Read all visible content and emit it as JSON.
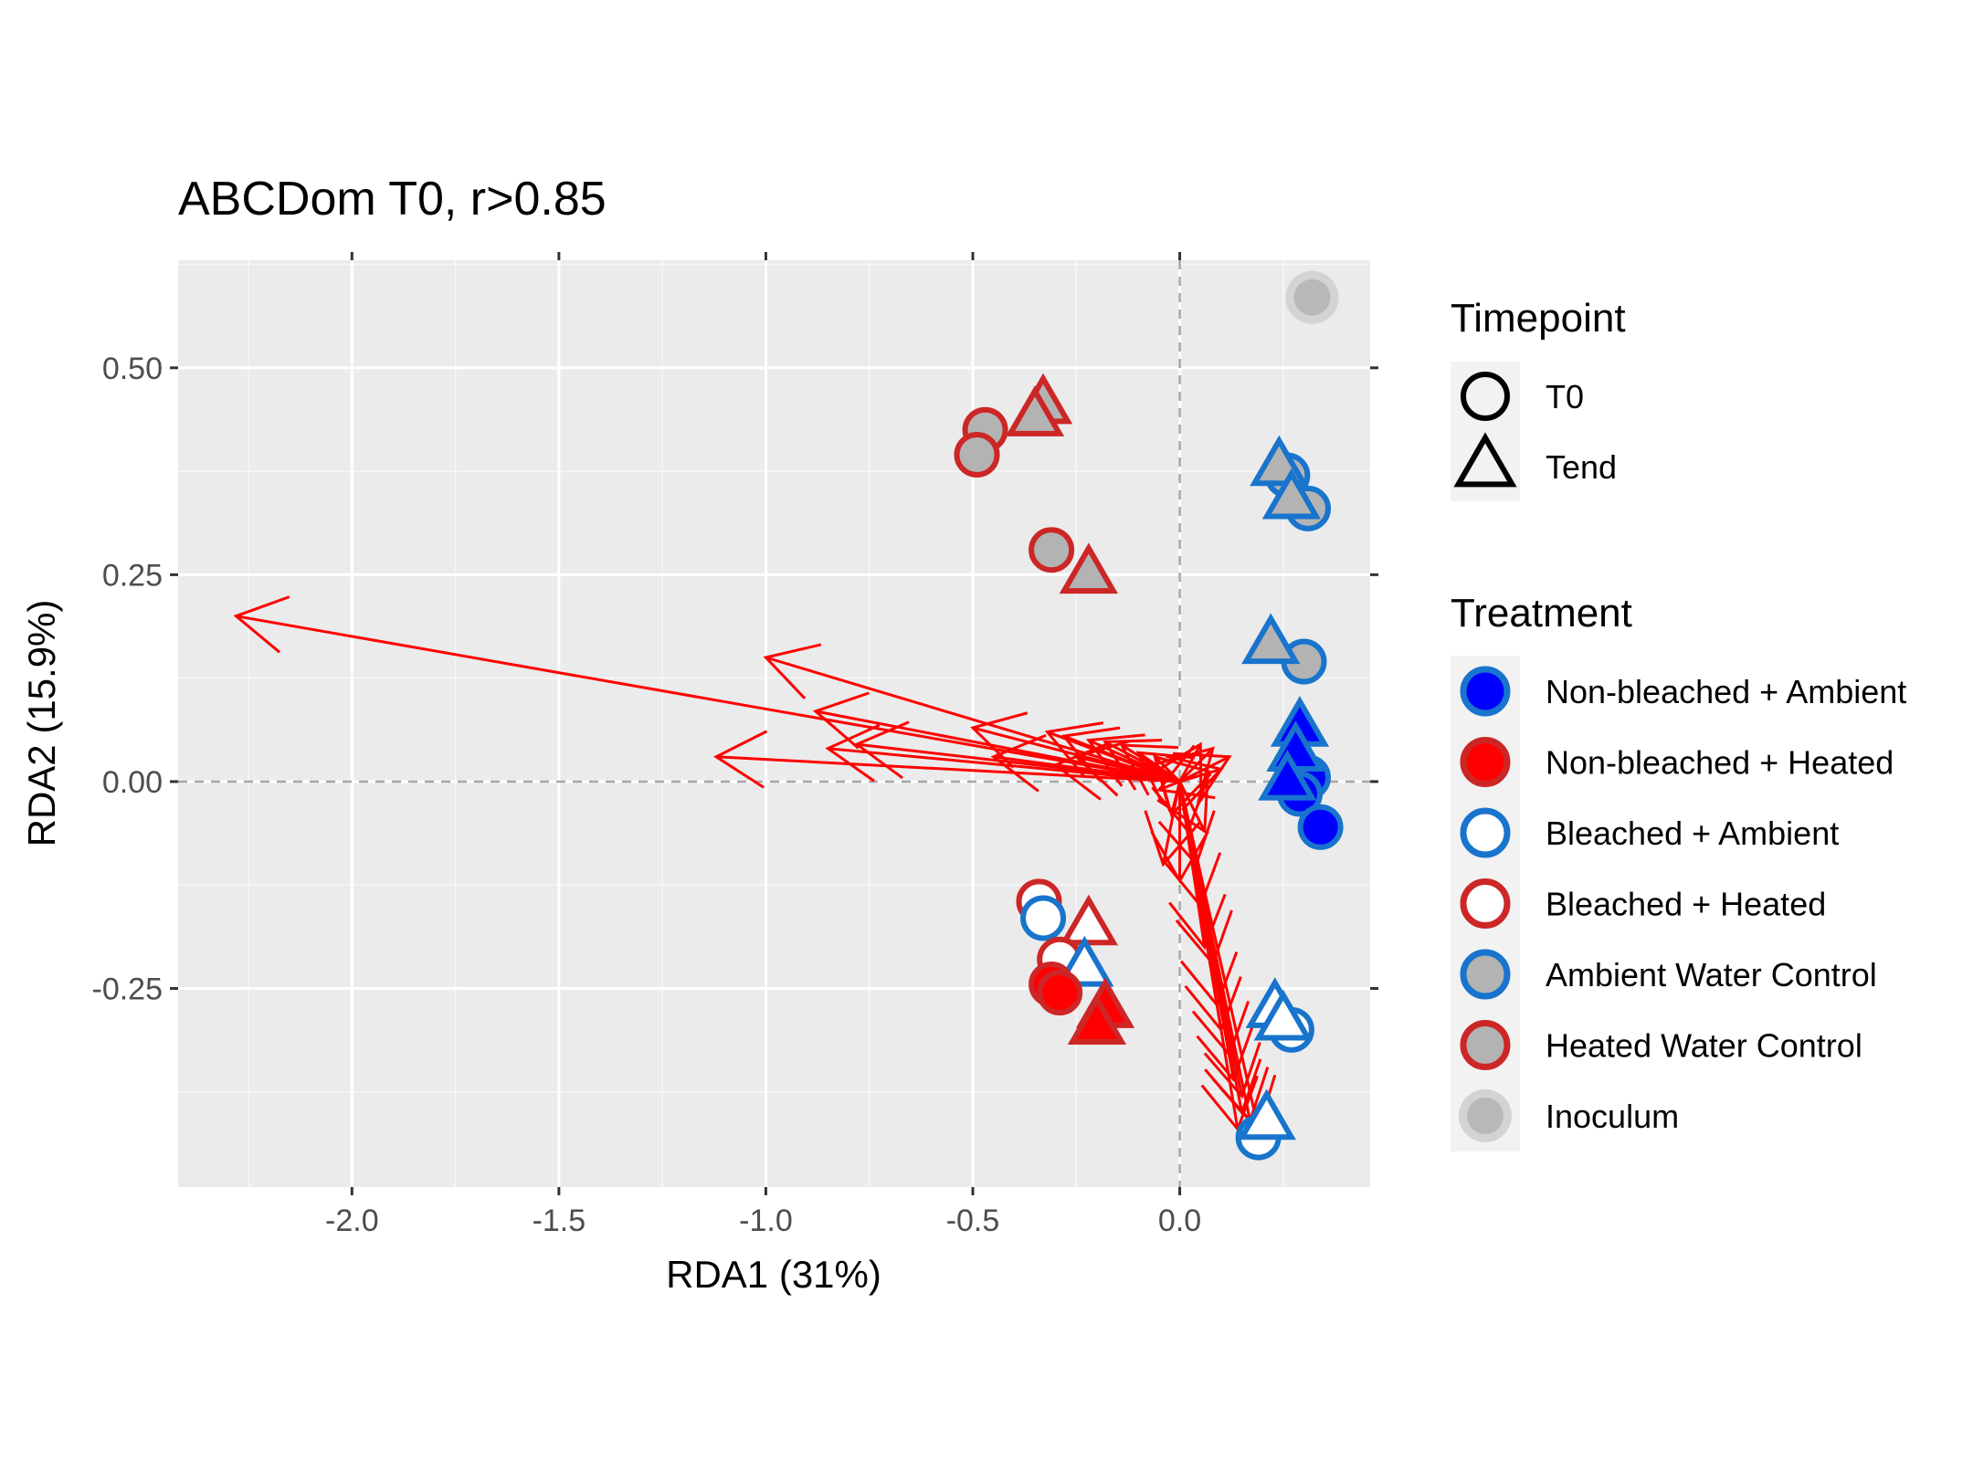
{
  "chart_data": {
    "type": "scatter",
    "title": "ABCDom T0, r>0.85",
    "xlabel": "RDA1 (31%)",
    "ylabel": "RDA2 (15.9%)",
    "xlim": [
      -2.42,
      0.46
    ],
    "ylim": [
      -0.49,
      0.63
    ],
    "x_ticks": [
      -2.0,
      -1.5,
      -1.0,
      -0.5,
      0.0
    ],
    "x_tick_labels": [
      "-2.0",
      "-1.5",
      "-1.0",
      "-0.5",
      "0.0"
    ],
    "y_ticks": [
      -0.25,
      0.0,
      0.25,
      0.5
    ],
    "y_tick_labels": [
      "-0.25",
      "0.00",
      "0.25",
      "0.50"
    ],
    "grid": true,
    "reference_lines": {
      "x": 0,
      "y": 0
    },
    "colors": {
      "panel": "#ebebeb",
      "grid_major": "#ffffff",
      "grid_minor": "#f7f7f7",
      "arrow": "#ff0000",
      "blue_fill": "#0000ff",
      "blue_outline": "#1874cd",
      "red_fill": "#ff0000",
      "red_outline": "#cd2626",
      "grey_fill": "#b3b3b3",
      "inoculum_fill": "#b8b8b8",
      "inoculum_outline": "#d3d3d3"
    },
    "legend": {
      "placement": "right",
      "timepoint": {
        "title": "Timepoint",
        "entries": [
          {
            "label": "T0",
            "shape": "circle"
          },
          {
            "label": "Tend",
            "shape": "triangle"
          }
        ]
      },
      "treatment": {
        "title": "Treatment",
        "entries": [
          {
            "label": "Non-bleached + Ambient",
            "fill": "#0000ff",
            "stroke": "#1874cd"
          },
          {
            "label": "Non-bleached + Heated",
            "fill": "#ff0000",
            "stroke": "#cd2626"
          },
          {
            "label": "Bleached + Ambient",
            "fill": "#ffffff",
            "stroke": "#1874cd"
          },
          {
            "label": "Bleached + Heated",
            "fill": "#ffffff",
            "stroke": "#cd2626"
          },
          {
            "label": "Ambient Water Control",
            "fill": "#b3b3b3",
            "stroke": "#1874cd"
          },
          {
            "label": "Heated Water Control",
            "fill": "#b3b3b3",
            "stroke": "#cd2626"
          },
          {
            "label": "Inoculum",
            "fill": "#b8b8b8",
            "stroke": "#d3d3d3"
          }
        ]
      }
    },
    "points": [
      {
        "x": 0.32,
        "y": 0.585,
        "shape": "circle",
        "treatment": 6
      },
      {
        "x": -0.33,
        "y": 0.455,
        "shape": "triangle",
        "treatment": 5
      },
      {
        "x": -0.35,
        "y": 0.44,
        "shape": "triangle",
        "treatment": 5
      },
      {
        "x": -0.47,
        "y": 0.425,
        "shape": "circle",
        "treatment": 5
      },
      {
        "x": -0.49,
        "y": 0.395,
        "shape": "circle",
        "treatment": 5
      },
      {
        "x": -0.31,
        "y": 0.28,
        "shape": "circle",
        "treatment": 5
      },
      {
        "x": -0.22,
        "y": 0.25,
        "shape": "triangle",
        "treatment": 5
      },
      {
        "x": 0.26,
        "y": 0.37,
        "shape": "circle",
        "treatment": 4
      },
      {
        "x": 0.31,
        "y": 0.33,
        "shape": "circle",
        "treatment": 4
      },
      {
        "x": 0.24,
        "y": 0.38,
        "shape": "triangle",
        "treatment": 4
      },
      {
        "x": 0.27,
        "y": 0.34,
        "shape": "triangle",
        "treatment": 4
      },
      {
        "x": 0.3,
        "y": 0.145,
        "shape": "circle",
        "treatment": 4
      },
      {
        "x": 0.22,
        "y": 0.165,
        "shape": "triangle",
        "treatment": 4
      },
      {
        "x": 0.31,
        "y": 0.005,
        "shape": "circle",
        "treatment": 0
      },
      {
        "x": 0.29,
        "y": -0.015,
        "shape": "circle",
        "treatment": 0
      },
      {
        "x": 0.34,
        "y": -0.055,
        "shape": "circle",
        "treatment": 0
      },
      {
        "x": 0.29,
        "y": 0.065,
        "shape": "triangle",
        "treatment": 0
      },
      {
        "x": 0.28,
        "y": 0.035,
        "shape": "triangle",
        "treatment": 0
      },
      {
        "x": 0.26,
        "y": 0.0,
        "shape": "triangle",
        "treatment": 0
      },
      {
        "x": -0.34,
        "y": -0.145,
        "shape": "circle",
        "treatment": 3
      },
      {
        "x": -0.33,
        "y": -0.165,
        "shape": "circle",
        "treatment": 2
      },
      {
        "x": -0.22,
        "y": -0.175,
        "shape": "triangle",
        "treatment": 3
      },
      {
        "x": -0.29,
        "y": -0.215,
        "shape": "circle",
        "treatment": 3
      },
      {
        "x": -0.23,
        "y": -0.225,
        "shape": "triangle",
        "treatment": 2
      },
      {
        "x": -0.31,
        "y": -0.245,
        "shape": "circle",
        "treatment": 1
      },
      {
        "x": -0.29,
        "y": -0.255,
        "shape": "circle",
        "treatment": 1
      },
      {
        "x": -0.18,
        "y": -0.275,
        "shape": "triangle",
        "treatment": 1
      },
      {
        "x": -0.2,
        "y": -0.295,
        "shape": "triangle",
        "treatment": 1
      },
      {
        "x": 0.23,
        "y": -0.275,
        "shape": "triangle",
        "treatment": 2
      },
      {
        "x": 0.27,
        "y": -0.3,
        "shape": "circle",
        "treatment": 2
      },
      {
        "x": 0.25,
        "y": -0.29,
        "shape": "triangle",
        "treatment": 2
      },
      {
        "x": 0.19,
        "y": -0.43,
        "shape": "circle",
        "treatment": 2
      },
      {
        "x": 0.21,
        "y": -0.41,
        "shape": "triangle",
        "treatment": 2
      }
    ],
    "arrows": [
      {
        "x": -2.28,
        "y": 0.2
      },
      {
        "x": -1.0,
        "y": 0.15
      },
      {
        "x": -1.12,
        "y": 0.03
      },
      {
        "x": -0.88,
        "y": 0.085
      },
      {
        "x": -0.78,
        "y": 0.045
      },
      {
        "x": -0.85,
        "y": 0.04
      },
      {
        "x": -0.5,
        "y": 0.065
      },
      {
        "x": -0.45,
        "y": 0.03
      },
      {
        "x": -0.32,
        "y": 0.06
      },
      {
        "x": -0.28,
        "y": 0.055
      },
      {
        "x": -0.22,
        "y": 0.05
      },
      {
        "x": -0.18,
        "y": 0.048
      },
      {
        "x": -0.14,
        "y": 0.044
      },
      {
        "x": -0.3,
        "y": 0.02
      },
      {
        "x": -0.25,
        "y": 0.03
      },
      {
        "x": -0.1,
        "y": 0.035
      },
      {
        "x": -0.06,
        "y": 0.03
      },
      {
        "x": 0.05,
        "y": 0.045
      },
      {
        "x": 0.08,
        "y": 0.04
      },
      {
        "x": 0.12,
        "y": 0.03
      },
      {
        "x": 0.1,
        "y": 0.015
      },
      {
        "x": -0.05,
        "y": -0.01
      },
      {
        "x": -0.02,
        "y": -0.04
      },
      {
        "x": 0.02,
        "y": -0.06
      },
      {
        "x": 0.06,
        "y": -0.06
      },
      {
        "x": -0.04,
        "y": -0.1
      },
      {
        "x": 0.0,
        "y": -0.12
      },
      {
        "x": 0.04,
        "y": -0.1
      },
      {
        "x": 0.05,
        "y": -0.15
      },
      {
        "x": 0.06,
        "y": -0.2
      },
      {
        "x": 0.08,
        "y": -0.22
      },
      {
        "x": 0.09,
        "y": -0.27
      },
      {
        "x": 0.1,
        "y": -0.3
      },
      {
        "x": 0.12,
        "y": -0.33
      },
      {
        "x": 0.13,
        "y": -0.36
      },
      {
        "x": 0.15,
        "y": -0.38
      },
      {
        "x": 0.15,
        "y": -0.4
      },
      {
        "x": 0.17,
        "y": -0.41
      },
      {
        "x": 0.19,
        "y": -0.42
      },
      {
        "x": 0.14,
        "y": -0.42
      }
    ]
  }
}
